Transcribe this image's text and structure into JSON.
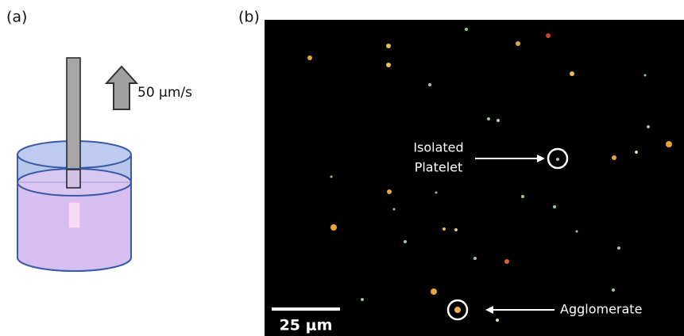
{
  "panel_a": {
    "label": "(a)",
    "speed": "50 μm/s"
  },
  "panel_b": {
    "label": "(b)",
    "isolated": [
      "Isolated",
      "Platelet"
    ],
    "agglomerate": "Agglomerate",
    "scale_bar": "25 μm"
  }
}
